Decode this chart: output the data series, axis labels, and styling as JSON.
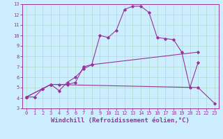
{
  "background_color": "#cceeff",
  "line_color": "#993399",
  "grid_color": "#aaddcc",
  "xlim": [
    -0.5,
    23.5
  ],
  "ylim": [
    3,
    13
  ],
  "xticks": [
    0,
    1,
    2,
    3,
    4,
    5,
    6,
    7,
    8,
    9,
    10,
    11,
    12,
    13,
    14,
    15,
    16,
    17,
    18,
    19,
    20,
    21,
    22,
    23
  ],
  "yticks": [
    3,
    4,
    5,
    6,
    7,
    8,
    9,
    10,
    11,
    12,
    13
  ],
  "line1_x": [
    0,
    1,
    2,
    3,
    4,
    5,
    6,
    7,
    8,
    9,
    10,
    11,
    12,
    13,
    14,
    15,
    16,
    17,
    18,
    19,
    20,
    21
  ],
  "line1_y": [
    4.1,
    4.1,
    4.9,
    5.3,
    4.7,
    5.5,
    6.0,
    6.8,
    7.2,
    10.0,
    9.8,
    10.5,
    12.5,
    12.8,
    12.8,
    12.2,
    9.8,
    9.7,
    9.6,
    8.4,
    5.0,
    7.4
  ],
  "line2_x": [
    0,
    2,
    3,
    4,
    5,
    6,
    7,
    8,
    21
  ],
  "line2_y": [
    4.1,
    4.9,
    5.3,
    5.3,
    5.3,
    5.5,
    7.0,
    7.2,
    8.4
  ],
  "line3_x": [
    0,
    3,
    21,
    23
  ],
  "line3_y": [
    4.1,
    5.3,
    5.0,
    3.5
  ],
  "tick_fontsize": 5.0,
  "xlabel": "Windchill (Refroidissement éolien,°C)",
  "xlabel_fontsize": 6.5
}
